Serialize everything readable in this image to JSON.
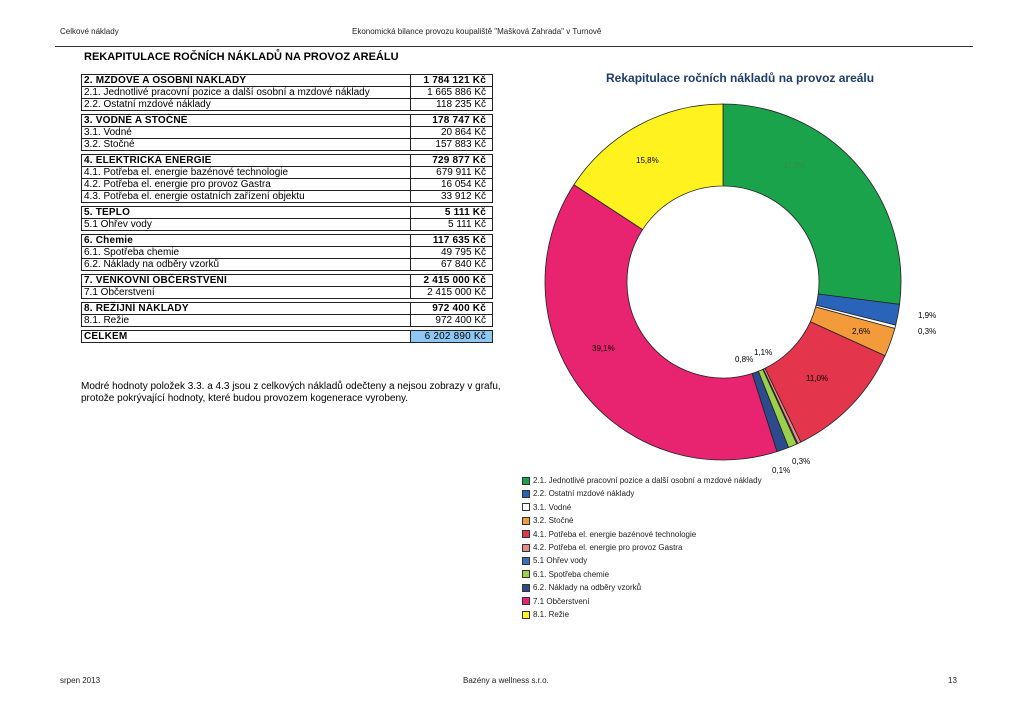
{
  "header": {
    "left": "Celkové náklady",
    "center": "Ekonomická bilance provozu koupaliště \"Mašková Zahrada\" v Turnově"
  },
  "title": "REKAPITULACE ROČNÍCH NÁKLADŮ NA PROVOZ AREÁLU",
  "table": {
    "groups": [
      {
        "label": "2. MZDOVÉ A OSOBNÍ NÁKLADY",
        "value": "1 784 121 Kč",
        "rows": [
          {
            "label": "2.1. Jednotlivé pracovní pozice a další osobní a mzdové náklady",
            "value": "1 665 886 Kč"
          },
          {
            "label": "2.2. Ostatní mzdové náklady",
            "value": "118 235 Kč"
          }
        ]
      },
      {
        "label": "3. VODNÉ A STOČNÉ",
        "value": "178 747 Kč",
        "rows": [
          {
            "label": "3.1. Vodné",
            "value": "20 864 Kč"
          },
          {
            "label": "3.2. Stočné",
            "value": "157 883 Kč"
          }
        ]
      },
      {
        "label": "4. ELEKTRICKÁ ENERGIE",
        "value": "729 877 Kč",
        "rows": [
          {
            "label": "4.1. Potřeba el. energie bazénové technologie",
            "value": "679 911 Kč"
          },
          {
            "label": "4.2. Potřeba el. energie pro provoz Gastra",
            "value": "16 054 Kč"
          },
          {
            "label": "4.3. Potřeba el. energie ostatních zařízení objektu",
            "value": "33 912 Kč"
          }
        ]
      },
      {
        "label": "5. TEPLO",
        "value": "5 111 Kč",
        "rows": [
          {
            "label": "5.1 Ohřev vody",
            "value": "5 111 Kč"
          }
        ]
      },
      {
        "label": "6. Chemie",
        "value": "117 635 Kč",
        "rows": [
          {
            "label": "6.1. Spotřeba chemie",
            "value": "49 795 Kč"
          },
          {
            "label": "6.2. Náklady na odběry vzorků",
            "value": "67 840 Kč"
          }
        ]
      },
      {
        "label": "7. VENKOVNÍ OBČERSTVENÍ",
        "value": "2 415 000 Kč",
        "rows": [
          {
            "label": "7.1 Občerstvení",
            "value": "2 415 000 Kč"
          }
        ]
      },
      {
        "label": "8. REŽIJNÍ NÁKLADY",
        "value": "972 400 Kč",
        "rows": [
          {
            "label": "8.1. Režie",
            "value": "972 400 Kč"
          }
        ]
      }
    ],
    "total": {
      "label": "CELKEM",
      "value": "6 202 890 Kč"
    }
  },
  "note": "Modré hodnoty položek 3.3. a 4.3 jsou z celkových nákladů odečteny a nejsou zobrazy v grafu, protože pokrývající hodnoty, které budou provozem kogenerace vyrobeny.",
  "chart_data": {
    "type": "pie",
    "title": "Rekapitulace ročních nákladů na provoz areálu",
    "donut": true,
    "series": [
      {
        "name": "2.1. Jednotlivé pracovní pozice a další osobní a mzdové náklady",
        "value": 27.0,
        "label": "27,0%",
        "color": "#1aa34a"
      },
      {
        "name": "2.2. Ostatní mzdové náklady",
        "value": 1.9,
        "label": "1,9%",
        "color": "#2a64b8"
      },
      {
        "name": "3.1. Vodné",
        "value": 0.3,
        "label": "0,3%",
        "color": "#ffffff"
      },
      {
        "name": "3.2. Stočné",
        "value": 2.6,
        "label": "2,6%",
        "color": "#f39a3a"
      },
      {
        "name": "4.1. Potřeba el. energie bazénové technologie",
        "value": 11.0,
        "label": "11,0%",
        "color": "#e3354b"
      },
      {
        "name": "4.2. Potřeba el. energie pro provoz Gastra",
        "value": 0.3,
        "label": "0,3%",
        "color": "#e88a8a"
      },
      {
        "name": "5.1 Ohřev vody",
        "value": 0.1,
        "label": "0,1%",
        "color": "#3a6fc0"
      },
      {
        "name": "6.1. Spotřeba chemie",
        "value": 0.8,
        "label": "0,8%",
        "color": "#9ad04a"
      },
      {
        "name": "6.2. Náklady na odběry vzorků",
        "value": 1.1,
        "label": "1,1%",
        "color": "#2d4a8c"
      },
      {
        "name": "7.1 Občerstvení",
        "value": 39.1,
        "label": "39,1%",
        "color": "#e8236f"
      },
      {
        "name": "8.1. Režie",
        "value": 15.8,
        "label": "15,8%",
        "color": "#fff21e"
      }
    ],
    "legend_position": "bottom"
  },
  "footer": {
    "left": "srpen 2013",
    "center": "Bazény a wellness s.r.o.",
    "right": "13"
  }
}
